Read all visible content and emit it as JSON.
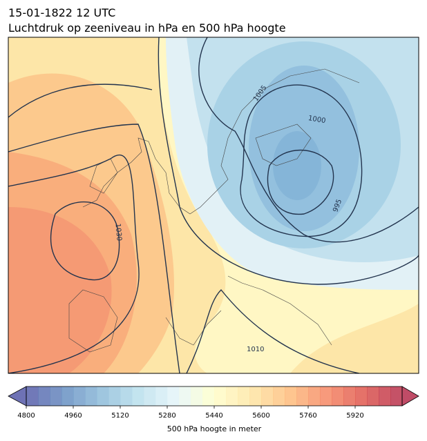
{
  "map": {
    "title": "15-01-1822 12 UTC",
    "subtitle": "Luchtdruk op zeeniveau in hPa en 500 hPa hoogte",
    "isobar_labels": [
      "1005",
      "1000",
      "995",
      "1030",
      "1010"
    ],
    "colorbar": {
      "label": "500 hPa hoogte in meter",
      "min": 4800,
      "max": 6080,
      "step": 40,
      "ticks": [
        4800,
        4960,
        5120,
        5280,
        5440,
        5600,
        5760,
        5920
      ],
      "colors": [
        "#313695",
        "#4575b4",
        "#74add1",
        "#abd9e9",
        "#e0f3f8",
        "#ffffbf",
        "#fee090",
        "#fdae61",
        "#f46d43",
        "#d73027",
        "#a50026"
      ],
      "opacity": 0.7
    }
  }
}
